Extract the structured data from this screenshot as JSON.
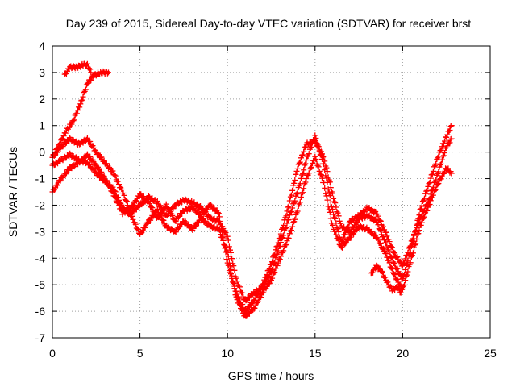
{
  "chart_data": {
    "type": "scatter",
    "title": "Day 239 of 2015, Sidereal Day-to-day VTEC variation (SDTVAR) for receiver brst",
    "xlabel": "GPS time / hours",
    "ylabel": "SDTVAR / TECUs",
    "xlim": [
      0,
      25
    ],
    "ylim": [
      -7,
      4
    ],
    "xticks": [
      "0",
      "5",
      "10",
      "15",
      "20",
      "25"
    ],
    "yticks": [
      "-7",
      "-6",
      "-5",
      "-4",
      "-3",
      "-2",
      "-1",
      "0",
      "1",
      "2",
      "3",
      "4"
    ],
    "grid": true,
    "marker": "plus",
    "color": "#ff0000",
    "series": [
      {
        "x": [
          0.0,
          0.5,
          1.0,
          1.5,
          2.0,
          2.5,
          3.0,
          3.5,
          4.0,
          4.5,
          5.0,
          5.5,
          6.0,
          6.5,
          7.0,
          7.5,
          8.0,
          8.5,
          9.0,
          9.5,
          10.0,
          10.5,
          11.0,
          11.5,
          12.0,
          12.5,
          13.0,
          13.5,
          14.0,
          14.5,
          15.0,
          15.5,
          16.0,
          16.5,
          17.0,
          17.5,
          18.0,
          18.5,
          19.0,
          19.5,
          20.0,
          20.5,
          21.0,
          21.5,
          22.0,
          22.5,
          22.8
        ],
        "y": [
          -0.2,
          0.2,
          0.5,
          0.3,
          0.5,
          0.0,
          -0.4,
          -0.8,
          -1.5,
          -2.3,
          -2.0,
          -1.7,
          -1.9,
          -2.4,
          -2.0,
          -1.8,
          -1.9,
          -2.1,
          -2.5,
          -2.6,
          -3.2,
          -4.8,
          -5.6,
          -5.3,
          -5.1,
          -4.5,
          -3.5,
          -2.5,
          -1.5,
          -0.3,
          0.6,
          -0.5,
          -2.2,
          -3.4,
          -2.6,
          -2.4,
          -2.1,
          -2.3,
          -3.0,
          -3.8,
          -4.3,
          -3.4,
          -2.5,
          -1.8,
          -0.8,
          0.2,
          0.5
        ]
      },
      {
        "x": [
          0.0,
          0.5,
          1.0,
          1.5,
          2.0,
          2.5,
          3.0,
          3.5,
          4.0,
          4.5,
          5.0,
          5.5,
          6.0,
          6.5,
          7.0,
          7.5,
          8.0,
          8.5,
          9.0,
          9.5,
          10.0,
          10.5,
          11.0,
          11.5,
          12.0,
          12.5,
          13.0,
          13.5,
          14.0,
          14.5,
          15.0,
          15.5,
          16.0,
          16.5,
          17.0,
          17.5,
          18.0,
          18.5,
          19.0,
          19.5,
          20.0,
          20.5,
          21.0,
          21.5,
          22.0,
          22.5,
          22.8
        ],
        "y": [
          -0.5,
          -0.3,
          -0.1,
          -0.3,
          -0.4,
          -0.8,
          -1.1,
          -1.4,
          -2.1,
          -2.4,
          -3.1,
          -2.6,
          -2.2,
          -2.8,
          -3.0,
          -2.6,
          -2.9,
          -2.5,
          -2.8,
          -2.9,
          -3.8,
          -5.5,
          -6.2,
          -5.9,
          -5.3,
          -4.8,
          -4.0,
          -3.2,
          -2.2,
          -1.0,
          -0.2,
          -1.2,
          -2.8,
          -3.6,
          -3.2,
          -2.8,
          -2.9,
          -3.2,
          -3.8,
          -4.6,
          -5.2,
          -4.0,
          -2.8,
          -2.0,
          -1.2,
          -0.6,
          -0.8
        ]
      },
      {
        "x": [
          0.0,
          0.5,
          1.0,
          1.5,
          2.0,
          2.5,
          3.0,
          3.5,
          4.0,
          4.5,
          5.0,
          5.5,
          6.0,
          6.5,
          7.0,
          7.5,
          8.0,
          8.5,
          9.0,
          9.5,
          10.0,
          10.5,
          11.0,
          11.5,
          12.0,
          12.5,
          13.0,
          13.5,
          14.0,
          14.5,
          15.0,
          15.5,
          16.0,
          16.5,
          17.0,
          17.5,
          18.0,
          18.5,
          19.0,
          19.5,
          20.0,
          20.5,
          21.0,
          21.5,
          22.0,
          22.5,
          22.8
        ],
        "y": [
          -1.5,
          -1.0,
          -0.6,
          -0.4,
          -0.1,
          -0.5,
          -1.0,
          -1.6,
          -2.3,
          -2.1,
          -1.6,
          -1.9,
          -2.5,
          -2.0,
          -2.6,
          -2.2,
          -2.1,
          -2.4,
          -2.0,
          -2.3,
          -4.2,
          -5.3,
          -6.0,
          -5.6,
          -5.0,
          -4.2,
          -3.2,
          -2.0,
          -0.6,
          0.3,
          0.4,
          -0.2,
          -1.6,
          -2.8,
          -3.0,
          -2.5,
          -2.4,
          -2.6,
          -3.4,
          -4.2,
          -4.8,
          -3.6,
          -2.2,
          -1.2,
          -0.2,
          0.6,
          1.0
        ]
      },
      {
        "x": [
          0.0,
          0.4,
          0.8,
          1.2,
          1.6,
          2.0,
          2.4,
          2.8,
          3.2
        ],
        "y": [
          -0.2,
          0.3,
          0.8,
          1.2,
          1.8,
          2.6,
          2.9,
          3.0,
          3.0
        ]
      },
      {
        "x": [
          0.7,
          1.0,
          1.4,
          1.8,
          2.0,
          2.2
        ],
        "y": [
          2.9,
          3.2,
          3.2,
          3.3,
          3.3,
          3.0
        ]
      },
      {
        "x": [
          18.2,
          18.5,
          18.8,
          19.1,
          19.4,
          19.7,
          19.9
        ],
        "y": [
          -4.6,
          -4.3,
          -4.5,
          -4.9,
          -5.2,
          -5.1,
          -5.3
        ]
      }
    ]
  }
}
